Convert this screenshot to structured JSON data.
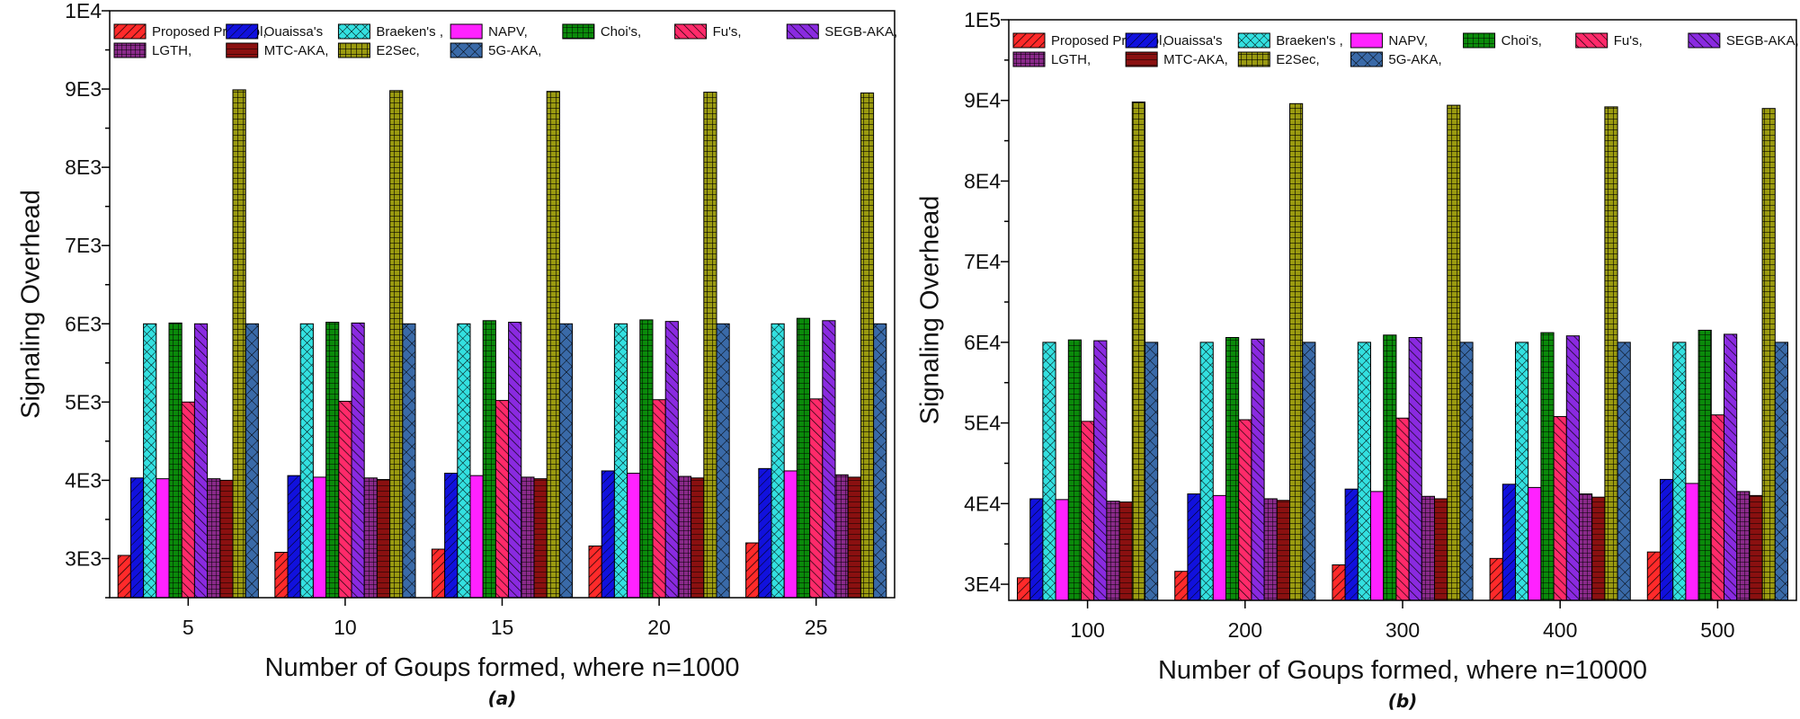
{
  "chart_data": [
    {
      "type": "bar",
      "panel_label": "(a)",
      "xlabel": "Number of Goups formed, where n=1000",
      "ylabel": "Signaling Overhead",
      "ylim": [
        2500,
        10000
      ],
      "yticks": [
        3000,
        4000,
        5000,
        6000,
        7000,
        8000,
        9000,
        10000
      ],
      "ytick_labels": [
        "3E3",
        "4E3",
        "5E3",
        "6E3",
        "7E3",
        "8E3",
        "9E3",
        "1E4"
      ],
      "categories": [
        "5",
        "10",
        "15",
        "20",
        "25"
      ],
      "legend_position": "top",
      "series": [
        {
          "name": "Proposed Protocol,",
          "values": [
            3040,
            3080,
            3120,
            3160,
            3200
          ]
        },
        {
          "name": "Ouaissa's",
          "values": [
            4030,
            4060,
            4090,
            4120,
            4150
          ]
        },
        {
          "name": "Braeken's ,",
          "values": [
            6000,
            6000,
            6000,
            6000,
            6000
          ]
        },
        {
          "name": "NAPV,",
          "values": [
            4020,
            4040,
            4060,
            4090,
            4120
          ]
        },
        {
          "name": "Choi's,",
          "values": [
            6010,
            6020,
            6040,
            6050,
            6070
          ]
        },
        {
          "name": "Fu's,",
          "values": [
            5000,
            5010,
            5020,
            5030,
            5040
          ]
        },
        {
          "name": "SEGB-AKA,",
          "values": [
            6000,
            6010,
            6020,
            6030,
            6040
          ]
        },
        {
          "name": "LGTH,",
          "values": [
            4020,
            4030,
            4040,
            4050,
            4070
          ]
        },
        {
          "name": "MTC-AKA,",
          "values": [
            4000,
            4010,
            4020,
            4030,
            4040
          ]
        },
        {
          "name": "E2Sec,",
          "values": [
            8990,
            8980,
            8970,
            8960,
            8950
          ]
        },
        {
          "name": "5G-AKA,",
          "values": [
            6000,
            6000,
            6000,
            6000,
            6000
          ]
        }
      ]
    },
    {
      "type": "bar",
      "panel_label": "(b)",
      "xlabel": "Number of Goups formed, where n=10000",
      "ylabel": "Signaling Overhead",
      "ylim": [
        28000,
        100000
      ],
      "yticks": [
        30000,
        40000,
        50000,
        60000,
        70000,
        80000,
        90000,
        100000
      ],
      "ytick_labels": [
        "3E4",
        "4E4",
        "5E4",
        "6E4",
        "7E4",
        "8E4",
        "9E4",
        "1E5"
      ],
      "categories": [
        "100",
        "200",
        "300",
        "400",
        "500"
      ],
      "legend_position": "top",
      "series": [
        {
          "name": "Proposed Protocol,",
          "values": [
            30800,
            31600,
            32400,
            33200,
            34000
          ]
        },
        {
          "name": "Ouaissa's",
          "values": [
            40600,
            41200,
            41800,
            42400,
            43000
          ]
        },
        {
          "name": "Braeken's ,",
          "values": [
            60000,
            60000,
            60000,
            60000,
            60000
          ]
        },
        {
          "name": "NAPV,",
          "values": [
            40500,
            41000,
            41500,
            42000,
            42500
          ]
        },
        {
          "name": "Choi's,",
          "values": [
            60300,
            60600,
            60900,
            61200,
            61500
          ]
        },
        {
          "name": "Fu's,",
          "values": [
            50200,
            50400,
            50600,
            50800,
            51000
          ]
        },
        {
          "name": "SEGB-AKA,",
          "values": [
            60200,
            60400,
            60600,
            60800,
            61000
          ]
        },
        {
          "name": "LGTH,",
          "values": [
            40300,
            40600,
            40900,
            41200,
            41500
          ]
        },
        {
          "name": "MTC-AKA,",
          "values": [
            40200,
            40400,
            40600,
            40800,
            41000
          ]
        },
        {
          "name": "E2Sec,",
          "values": [
            89800,
            89600,
            89400,
            89200,
            89000
          ]
        },
        {
          "name": "5G-AKA,",
          "values": [
            60000,
            60000,
            60000,
            60000,
            60000
          ]
        }
      ]
    }
  ],
  "series_styles": [
    {
      "color": "#ff2a2a",
      "pattern": "hatch-fwd-red"
    },
    {
      "color": "#1111dd",
      "pattern": "hatch-fwd-blue"
    },
    {
      "color": "#33e0e0",
      "pattern": "cross-cyan"
    },
    {
      "color": "#ff22ff",
      "pattern": "solid-magenta"
    },
    {
      "color": "#0a8a0a",
      "pattern": "grid-green"
    },
    {
      "color": "#ff2a6a",
      "pattern": "hatch-back-pink"
    },
    {
      "color": "#8a2ae0",
      "pattern": "hatch-back-purple"
    },
    {
      "color": "#8a2a8a",
      "pattern": "grid-plum"
    },
    {
      "color": "#8a1010",
      "pattern": "hatch-horiz-maroon"
    },
    {
      "color": "#9a9a10",
      "pattern": "grid-olive"
    },
    {
      "color": "#3a6aa8",
      "pattern": "cross-steel"
    }
  ]
}
